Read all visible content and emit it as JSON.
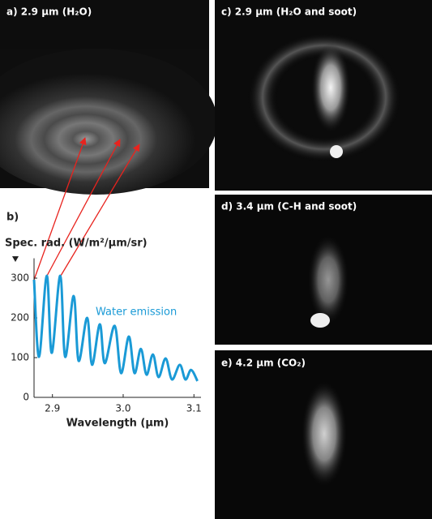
{
  "chart_data": {
    "type": "line",
    "title": "b)",
    "ylabel": "Spec. rad. (W/m²/µm/sr)",
    "xlabel": "Wavelength (µm)",
    "x": [
      2.874,
      2.881,
      2.892,
      2.899,
      2.911,
      2.918,
      2.93,
      2.937,
      2.949,
      2.956,
      2.967,
      2.974,
      2.988,
      2.997,
      3.008,
      3.016,
      3.025,
      3.033,
      3.042,
      3.05,
      3.06,
      3.069,
      3.08,
      3.088,
      3.096,
      3.105
    ],
    "series": [
      {
        "name": "Water emission",
        "color": "#1a9ad6",
        "values": [
          296,
          102,
          306,
          112,
          306,
          102,
          255,
          92,
          200,
          82,
          184,
          86,
          180,
          61,
          153,
          61,
          122,
          57,
          108,
          51,
          98,
          45,
          82,
          45,
          69,
          41
        ]
      }
    ],
    "xlim": [
      2.874,
      3.11
    ],
    "ylim": [
      0,
      350
    ],
    "xticks": [
      2.9,
      {
        "value": 3.0,
        "label": "3.0"
      },
      3.1
    ],
    "yticks": [
      0,
      100,
      200,
      300
    ]
  },
  "images": [
    {
      "label": "a) 2.9 µm (H₂O)"
    },
    {
      "label": "c) 2.9 µm (H₂O and soot)"
    },
    {
      "label": "d) 3.4 µm (C-H and soot)"
    },
    {
      "label": "e) 4.2 µm (CO₂)"
    }
  ]
}
